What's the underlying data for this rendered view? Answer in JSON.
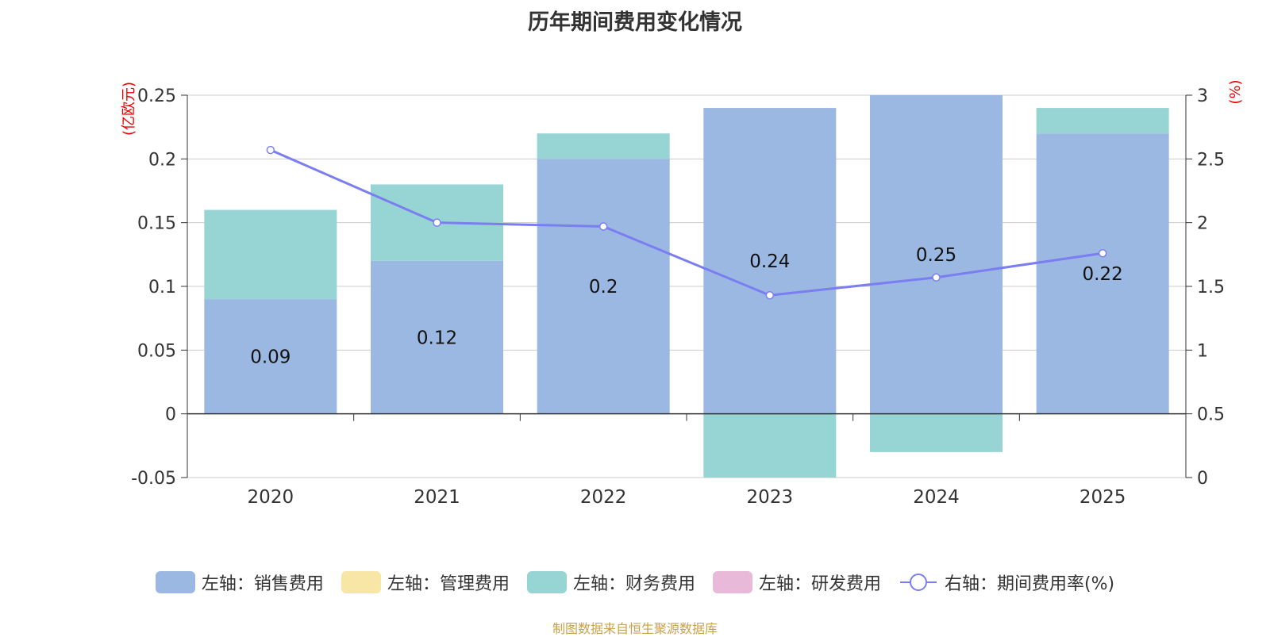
{
  "chart_data": {
    "type": "bar",
    "stacked": true,
    "title": "历年期间费用变化情况",
    "categories": [
      "2020",
      "2021",
      "2022",
      "2023",
      "2024",
      "2025"
    ],
    "series": [
      {
        "name": "左轴：销售费用",
        "axis": "left",
        "color": "#9bb8e3",
        "values": [
          0.09,
          0.12,
          0.2,
          0.24,
          0.25,
          0.22
        ]
      },
      {
        "name": "左轴：管理费用",
        "axis": "left",
        "color": "#f7e6a6",
        "values": [
          0,
          0,
          0,
          0,
          0,
          0
        ]
      },
      {
        "name": "左轴：财务费用",
        "axis": "left",
        "color": "#97d4d4",
        "values": [
          0.07,
          0.06,
          0.02,
          -0.05,
          -0.03,
          0.02
        ]
      },
      {
        "name": "左轴：研发费用",
        "axis": "left",
        "color": "#e8b9d9",
        "values": [
          0,
          0,
          0,
          0,
          0,
          0
        ]
      },
      {
        "name": "右轴：期间费用率(%)",
        "axis": "right",
        "type": "line",
        "color": "#7b7ef0",
        "values": [
          2.57,
          2.0,
          1.97,
          1.43,
          1.57,
          1.76
        ]
      }
    ],
    "data_labels": [
      "0.09",
      "0.12",
      "0.2",
      "0.24",
      "0.25",
      "0.22"
    ],
    "left_axis": {
      "label": "(亿欧元)",
      "ticks": [
        "0.25",
        "0.2",
        "0.15",
        "0.1",
        "0.05",
        "0",
        "-0.05"
      ],
      "range": [
        -0.05,
        0.25
      ]
    },
    "right_axis": {
      "label": "(%)",
      "ticks": [
        "3",
        "2.5",
        "2",
        "1.5",
        "1",
        "0.5",
        "0"
      ],
      "range": [
        0,
        3
      ]
    },
    "grid": true,
    "legend_position": "bottom"
  },
  "source_note": "制图数据来自恒生聚源数据库"
}
